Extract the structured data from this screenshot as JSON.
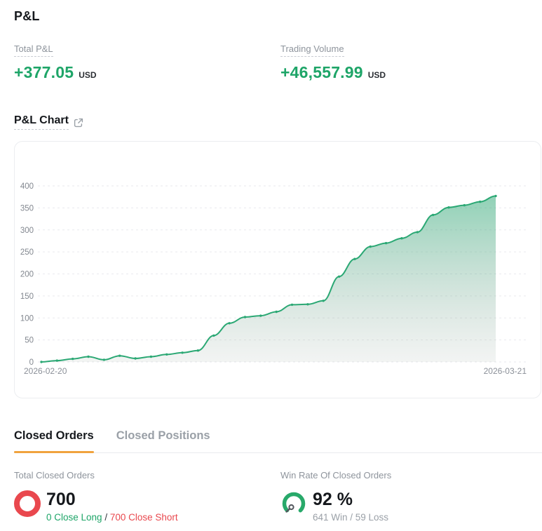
{
  "header": {
    "title": "P&L"
  },
  "summary": {
    "total_pnl": {
      "label": "Total P&L",
      "value": "+377.05",
      "currency": "USD"
    },
    "trading_volume": {
      "label": "Trading Volume",
      "value": "+46,557.99",
      "currency": "USD"
    }
  },
  "chart_section": {
    "title": "P&L Chart",
    "open_icon": "external-link-icon"
  },
  "chart_data": {
    "type": "area",
    "title": "P&L Chart",
    "x_start_label": "2026-02-20",
    "x_end_label": "2026-03-21",
    "num_points": 30,
    "values": [
      0,
      3,
      7,
      12,
      5,
      14,
      8,
      12,
      17,
      21,
      26,
      60,
      88,
      102,
      105,
      114,
      130,
      131,
      139,
      194,
      234,
      262,
      270,
      281,
      295,
      334,
      351,
      356,
      364,
      377.05
    ],
    "ylim": [
      0,
      400
    ],
    "ytick_step": 50,
    "grid": "dashed-horizontal",
    "legend": "none",
    "line_color": "#2ba874",
    "marker_color": "#2ba874",
    "area_top_color": "rgba(43,168,116,0.52)",
    "area_bottom_color": "rgba(148,163,155,0.12)",
    "tick_color": "#82878f",
    "grid_color": "#e9eaee"
  },
  "tabs": [
    {
      "label": "Closed Orders",
      "active": true
    },
    {
      "label": "Closed Positions",
      "active": false
    }
  ],
  "closed_orders": {
    "label": "Total Closed Orders",
    "value": "700",
    "close_long": "0 Close Long",
    "separator": " / ",
    "close_short": "700 Close Short",
    "icon": "red-donut-icon"
  },
  "win_rate": {
    "label": "Win Rate Of Closed Orders",
    "value": "92 %",
    "detail": "641 Win / 59 Loss",
    "icon": "gauge-icon"
  },
  "colors": {
    "green": "#1ea568",
    "red": "#e9484e",
    "orange": "#f0a33e",
    "dark_text": "#15181c",
    "gray_label": "#8e949c"
  }
}
